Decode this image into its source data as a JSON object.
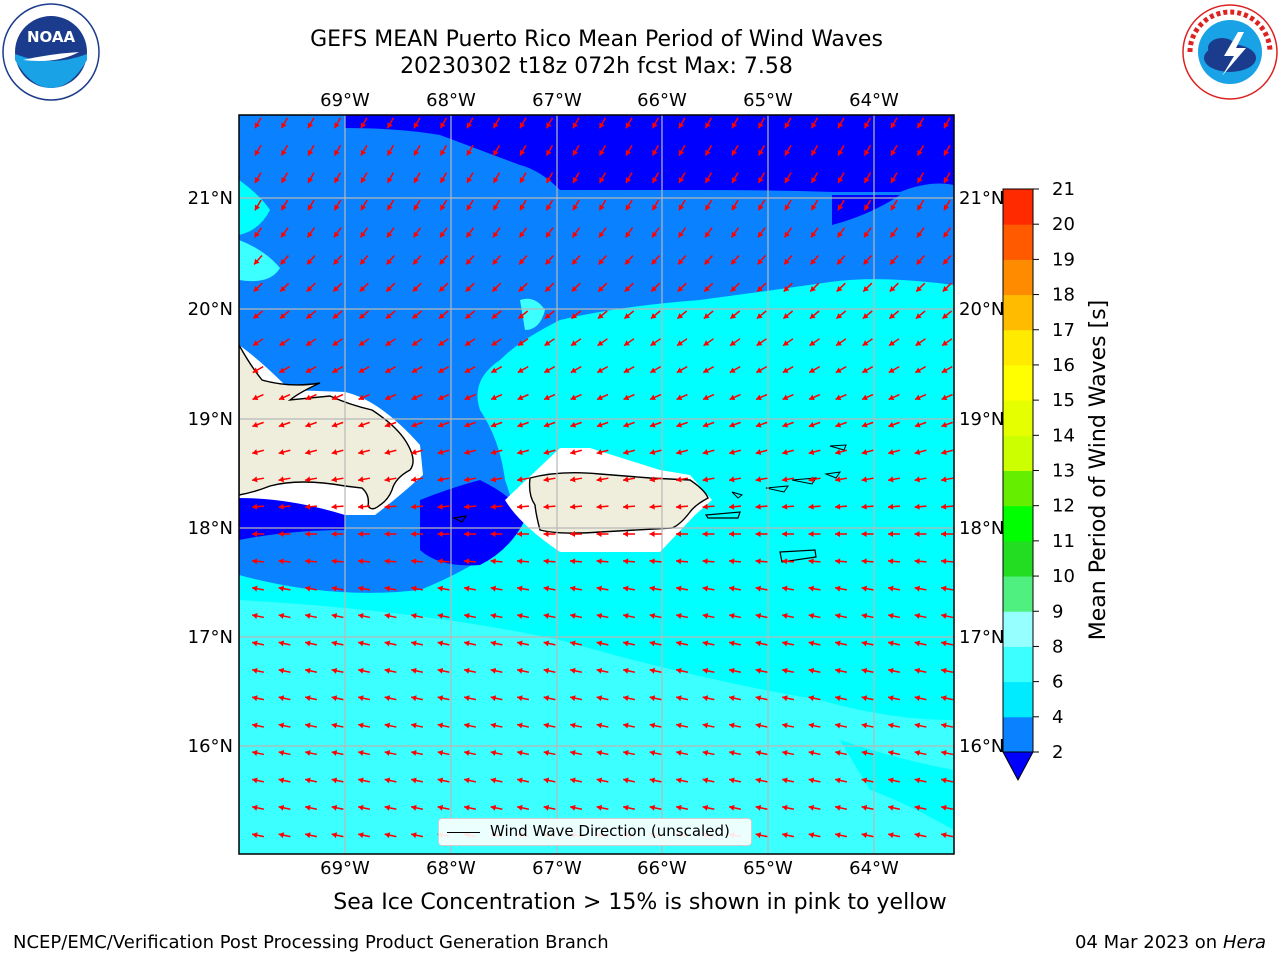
{
  "header": {
    "title_line1": "GEFS MEAN Puerto Rico Mean Period of Wind Waves",
    "title_line2": "20230302 t18z 072h fcst   Max: 7.58"
  },
  "logos": {
    "noaa": {
      "text": "NOAA",
      "ring_text": "NATIONAL OCEANIC AND ATMOSPHERIC ADMINISTRATION · U.S. DEPARTMENT OF COMMERCE"
    },
    "nws": {
      "ring_text": "NATIONAL WEATHER SERVICE"
    }
  },
  "map": {
    "lon_labels": [
      "69°W",
      "68°W",
      "67°W",
      "66°W",
      "65°W",
      "64°W"
    ],
    "lat_labels": [
      "21°N",
      "20°N",
      "19°N",
      "18°N",
      "17°N",
      "16°N"
    ],
    "legend_label": "Wind Wave Direction (unscaled)"
  },
  "colorbar": {
    "title": "Mean Period of Wind Waves [s]",
    "tick_labels": [
      "2",
      "4",
      "6",
      "8",
      "9",
      "10",
      "11",
      "12",
      "13",
      "14",
      "15",
      "16",
      "17",
      "18",
      "19",
      "20",
      "21"
    ],
    "level_colors": [
      "#0a82ff",
      "#00ebff",
      "#3cffff",
      "#96ffff",
      "#50f080",
      "#22dd22",
      "#00ff00",
      "#66ee00",
      "#ccff00",
      "#e6ff00",
      "#ffff00",
      "#ffea00",
      "#ffbb00",
      "#ff8c00",
      "#ff5a00",
      "#ff2a00",
      "#ff0000"
    ],
    "extend_color": "#0000ff"
  },
  "colors": {
    "deep_blue": "#0000ff",
    "mid_blue": "#0a82ff",
    "cyan": "#00ffff",
    "light_cyan": "#3cffff",
    "land": "#efeedd",
    "arrow": "#ff0000"
  },
  "note": "Sea Ice Concentration > 15% is shown in pink to yellow",
  "footer": {
    "left": "NCEP/EMC/Verification Post Processing Product Generation Branch",
    "right_prefix": "04 Mar 2023 on",
    "right_machine": "Hera"
  }
}
